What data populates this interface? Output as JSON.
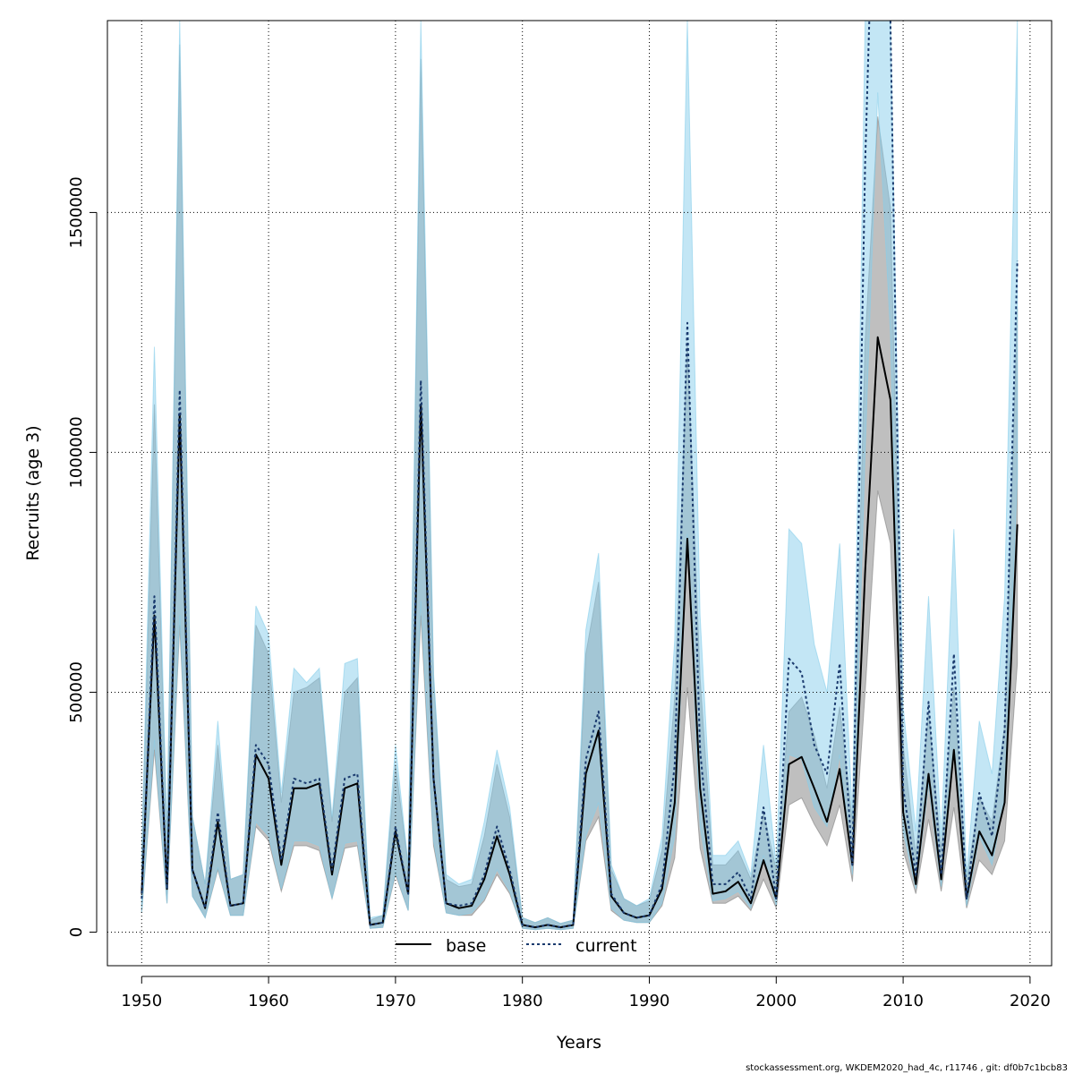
{
  "chart_data": {
    "type": "line",
    "title": "",
    "xlabel": "Years",
    "ylabel": "Recruits (age 3)",
    "xlim": [
      1947.3,
      2021.7
    ],
    "ylim": [
      -70000,
      1900000
    ],
    "x_ticks": [
      1950,
      1960,
      1970,
      1980,
      1990,
      2000,
      2010,
      2020
    ],
    "y_ticks": [
      0,
      500000,
      1000000,
      1500000
    ],
    "grid": true,
    "legend_position": "bottom-center",
    "footer": "stockassessment.org, WKDEM2020_had_4c, r11746 , git: df0b7c1bcb83",
    "x": [
      1950,
      1951,
      1952,
      1953,
      1954,
      1955,
      1956,
      1957,
      1958,
      1959,
      1960,
      1961,
      1962,
      1963,
      1964,
      1965,
      1966,
      1967,
      1968,
      1969,
      1970,
      1971,
      1972,
      1973,
      1974,
      1975,
      1976,
      1977,
      1978,
      1979,
      1980,
      1981,
      1982,
      1983,
      1984,
      1985,
      1986,
      1987,
      1988,
      1989,
      1990,
      1991,
      1992,
      1993,
      1994,
      1995,
      1996,
      1997,
      1998,
      1999,
      2000,
      2001,
      2002,
      2003,
      2004,
      2005,
      2006,
      2007,
      2008,
      2009,
      2010,
      2011,
      2012,
      2013,
      2014,
      2015,
      2016,
      2017,
      2018,
      2019
    ],
    "series": [
      {
        "name": "base",
        "color": "#000000",
        "band_color": "#808080",
        "values": [
          80000,
          660000,
          90000,
          1080000,
          130000,
          50000,
          230000,
          55000,
          60000,
          370000,
          320000,
          140000,
          300000,
          300000,
          310000,
          120000,
          300000,
          310000,
          15000,
          20000,
          210000,
          80000,
          1100000,
          320000,
          60000,
          50000,
          55000,
          110000,
          200000,
          120000,
          15000,
          10000,
          15000,
          10000,
          15000,
          330000,
          420000,
          75000,
          40000,
          30000,
          35000,
          90000,
          270000,
          820000,
          300000,
          80000,
          85000,
          105000,
          60000,
          150000,
          70000,
          350000,
          365000,
          300000,
          230000,
          340000,
          140000,
          750000,
          1240000,
          1110000,
          250000,
          100000,
          330000,
          110000,
          380000,
          70000,
          210000,
          160000,
          270000,
          850000
        ],
        "upper": [
          150000,
          1100000,
          190000,
          1850000,
          240000,
          100000,
          390000,
          110000,
          120000,
          640000,
          580000,
          270000,
          500000,
          510000,
          530000,
          230000,
          500000,
          530000,
          25000,
          35000,
          350000,
          140000,
          1820000,
          530000,
          110000,
          95000,
          100000,
          200000,
          350000,
          240000,
          30000,
          20000,
          30000,
          18000,
          25000,
          580000,
          730000,
          130000,
          70000,
          55000,
          65000,
          170000,
          490000,
          1230000,
          530000,
          140000,
          140000,
          170000,
          110000,
          250000,
          130000,
          460000,
          490000,
          410000,
          300000,
          470000,
          230000,
          1230000,
          1700000,
          1510000,
          390000,
          160000,
          460000,
          170000,
          510000,
          110000,
          280000,
          230000,
          430000,
          1300000
        ],
        "lower": [
          40000,
          380000,
          60000,
          640000,
          75000,
          30000,
          130000,
          35000,
          35000,
          220000,
          190000,
          85000,
          180000,
          180000,
          170000,
          70000,
          175000,
          180000,
          8000,
          10000,
          120000,
          45000,
          660000,
          180000,
          40000,
          35000,
          35000,
          65000,
          120000,
          80000,
          8000,
          5000,
          8000,
          5000,
          8000,
          190000,
          240000,
          45000,
          25000,
          20000,
          20000,
          55000,
          155000,
          510000,
          175000,
          60000,
          60000,
          75000,
          45000,
          110000,
          50000,
          265000,
          280000,
          225000,
          180000,
          265000,
          105000,
          500000,
          920000,
          810000,
          170000,
          80000,
          235000,
          85000,
          260000,
          50000,
          150000,
          120000,
          190000,
          560000
        ]
      },
      {
        "name": "current",
        "color": "#1a3a6e",
        "band_color": "#87CEEB",
        "values": [
          70000,
          700000,
          90000,
          1130000,
          130000,
          50000,
          250000,
          55000,
          60000,
          390000,
          350000,
          150000,
          320000,
          310000,
          320000,
          130000,
          320000,
          330000,
          15000,
          20000,
          220000,
          80000,
          1150000,
          320000,
          60000,
          55000,
          60000,
          120000,
          220000,
          130000,
          15000,
          10000,
          15000,
          10000,
          15000,
          360000,
          460000,
          80000,
          40000,
          30000,
          35000,
          100000,
          350000,
          1270000,
          380000,
          100000,
          100000,
          125000,
          70000,
          260000,
          70000,
          570000,
          540000,
          390000,
          330000,
          560000,
          140000,
          1600000,
          2500000,
          1900000,
          300000,
          120000,
          480000,
          120000,
          580000,
          70000,
          290000,
          200000,
          420000,
          1400000
        ],
        "upper": [
          160000,
          1220000,
          200000,
          1900000,
          240000,
          100000,
          440000,
          110000,
          120000,
          680000,
          620000,
          290000,
          550000,
          520000,
          550000,
          240000,
          560000,
          570000,
          30000,
          35000,
          390000,
          140000,
          1900000,
          540000,
          120000,
          100000,
          110000,
          230000,
          380000,
          260000,
          30000,
          20000,
          30000,
          18000,
          25000,
          630000,
          790000,
          140000,
          70000,
          55000,
          70000,
          200000,
          610000,
          1900000,
          660000,
          160000,
          160000,
          190000,
          120000,
          390000,
          140000,
          840000,
          810000,
          600000,
          500000,
          810000,
          240000,
          1900000,
          1900000,
          1900000,
          470000,
          210000,
          700000,
          200000,
          840000,
          120000,
          440000,
          330000,
          700000,
          1900000
        ],
        "lower": [
          40000,
          400000,
          60000,
          660000,
          75000,
          30000,
          135000,
          35000,
          35000,
          230000,
          200000,
          90000,
          190000,
          190000,
          180000,
          70000,
          185000,
          190000,
          8000,
          10000,
          125000,
          45000,
          690000,
          190000,
          40000,
          35000,
          40000,
          70000,
          130000,
          85000,
          8000,
          5000,
          8000,
          5000,
          8000,
          200000,
          270000,
          50000,
          25000,
          20000,
          20000,
          60000,
          200000,
          830000,
          220000,
          65000,
          70000,
          85000,
          50000,
          160000,
          55000,
          370000,
          360000,
          260000,
          220000,
          370000,
          120000,
          1000000,
          1750000,
          1250000,
          210000,
          90000,
          310000,
          95000,
          380000,
          55000,
          200000,
          140000,
          280000,
          950000
        ]
      }
    ]
  }
}
